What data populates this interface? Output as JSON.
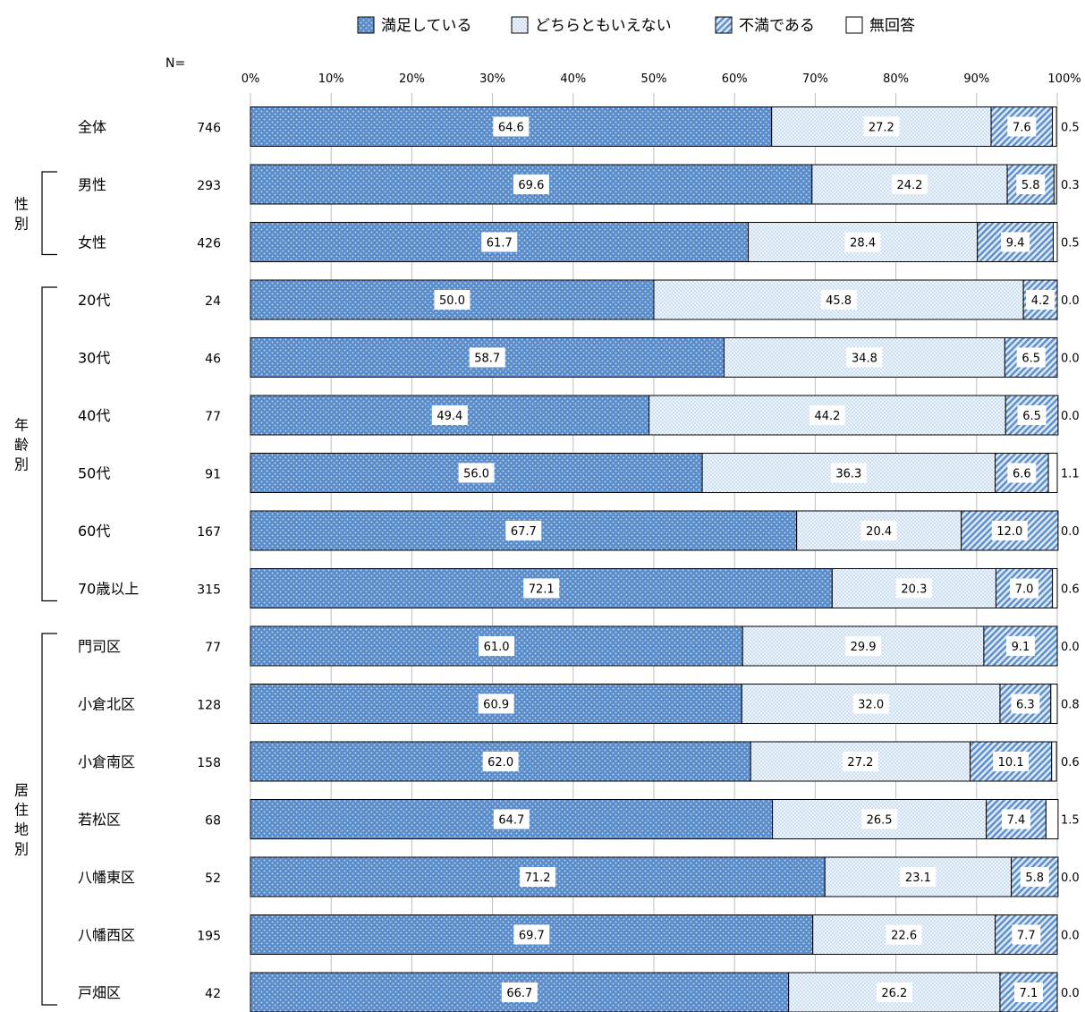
{
  "legend": [
    {
      "label": "満足している",
      "pattern": "dots-blue"
    },
    {
      "label": "どちらともいえない",
      "pattern": "dots-light"
    },
    {
      "label": "不満である",
      "pattern": "hatch"
    },
    {
      "label": "無回答",
      "pattern": "blank"
    }
  ],
  "n_header": "N=",
  "colors": {
    "satisfied": "#5b8dcb",
    "neutral": "#eef4fb",
    "dissatisfied": "#9bbde6",
    "no_answer": "#ffffff",
    "border": "#000000",
    "grid": "#bfbfbf"
  },
  "groups": [
    {
      "label": "性別",
      "rows": [
        "男性",
        "女性"
      ]
    },
    {
      "label": "年齢別",
      "rows": [
        "20代",
        "70歳以上"
      ]
    },
    {
      "label": "居住地別",
      "rows": [
        "門司区",
        "戸畑区"
      ]
    }
  ],
  "chart_data": {
    "type": "bar",
    "orientation": "horizontal",
    "stacked": true,
    "percent": true,
    "xlim": [
      0,
      100
    ],
    "x_ticks": [
      "0%",
      "10%",
      "20%",
      "30%",
      "40%",
      "50%",
      "60%",
      "70%",
      "80%",
      "90%",
      "100%"
    ],
    "grid": true,
    "legend_position": "top",
    "categories": [
      "全体",
      "男性",
      "女性",
      "20代",
      "30代",
      "40代",
      "50代",
      "60代",
      "70歳以上",
      "門司区",
      "小倉北区",
      "小倉南区",
      "若松区",
      "八幡東区",
      "八幡西区",
      "戸畑区"
    ],
    "n": [
      "746",
      "293",
      "426",
      "24",
      "46",
      "77",
      "91",
      "167",
      "315",
      "77",
      "128",
      "158",
      "68",
      "52",
      "195",
      "42"
    ],
    "series": [
      {
        "name": "満足している",
        "values": [
          64.6,
          69.6,
          61.7,
          50.0,
          58.7,
          49.4,
          56.0,
          67.7,
          72.1,
          61.0,
          60.9,
          62.0,
          64.7,
          71.2,
          69.7,
          66.7
        ]
      },
      {
        "name": "どちらともいえない",
        "values": [
          27.2,
          24.2,
          28.4,
          45.8,
          34.8,
          44.2,
          36.3,
          20.4,
          20.3,
          29.9,
          32.0,
          27.2,
          26.5,
          23.1,
          22.6,
          26.2
        ]
      },
      {
        "name": "不満である",
        "values": [
          7.6,
          5.8,
          9.4,
          4.2,
          6.5,
          6.5,
          6.6,
          12.0,
          7.0,
          9.1,
          6.3,
          10.1,
          7.4,
          5.8,
          7.7,
          7.1
        ]
      },
      {
        "name": "無回答",
        "values": [
          0.5,
          0.3,
          0.5,
          0.0,
          0.0,
          0.0,
          1.1,
          0.0,
          0.6,
          0.0,
          0.8,
          0.6,
          1.5,
          0.0,
          0.0,
          0.0
        ]
      }
    ],
    "labels": [
      [
        "64.6",
        "27.2",
        "7.6",
        "0.5"
      ],
      [
        "69.6",
        "24.2",
        "5.8",
        "0.3"
      ],
      [
        "61.7",
        "28.4",
        "9.4",
        "0.5"
      ],
      [
        "50.0",
        "45.8",
        "4.2",
        "0.0"
      ],
      [
        "58.7",
        "34.8",
        "6.5",
        "0.0"
      ],
      [
        "49.4",
        "44.2",
        "6.5",
        "0.0"
      ],
      [
        "56.0",
        "36.3",
        "6.6",
        "1.1"
      ],
      [
        "67.7",
        "20.4",
        "12.0",
        "0.0"
      ],
      [
        "72.1",
        "20.3",
        "7.0",
        "0.6"
      ],
      [
        "61.0",
        "29.9",
        "9.1",
        "0.0"
      ],
      [
        "60.9",
        "32.0",
        "6.3",
        "0.8"
      ],
      [
        "62.0",
        "27.2",
        "10.1",
        "0.6"
      ],
      [
        "64.7",
        "26.5",
        "7.4",
        "1.5"
      ],
      [
        "71.2",
        "23.1",
        "5.8",
        "0.0"
      ],
      [
        "69.7",
        "22.6",
        "7.7",
        "0.0"
      ],
      [
        "66.7",
        "26.2",
        "7.1",
        "0.0"
      ]
    ]
  }
}
